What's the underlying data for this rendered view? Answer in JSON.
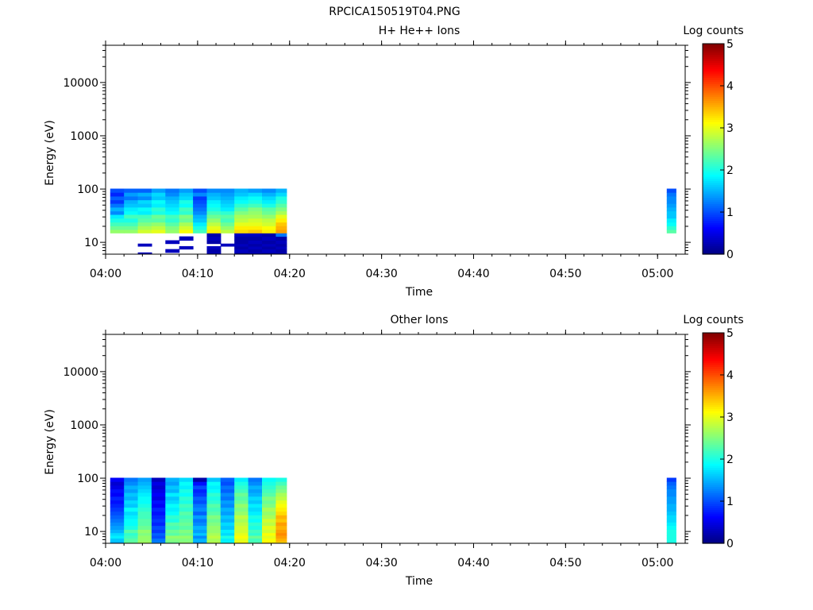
{
  "figure_title": "RPCICA150519T04.PNG",
  "chart_data": [
    {
      "type": "heatmap",
      "title": "H+ He++ Ions",
      "xlabel": "Time",
      "ylabel": "Energy (eV)",
      "yscale": "log",
      "xlim": [
        "04:00",
        "05:03"
      ],
      "ylim": [
        6,
        50000
      ],
      "xticks": [
        "04:00",
        "04:10",
        "04:20",
        "04:30",
        "04:40",
        "04:50",
        "05:00"
      ],
      "yticks": [
        "10",
        "100",
        "1000",
        "10000"
      ],
      "colorbar": {
        "label": "Log counts",
        "range": [
          0,
          5
        ],
        "ticks": [
          "0",
          "1",
          "2",
          "3",
          "4",
          "5"
        ],
        "colormap": "jet"
      },
      "energy_bins": [
        6,
        7,
        8,
        9,
        10,
        12,
        14,
        16,
        19,
        22,
        26,
        31,
        36,
        42,
        50,
        58,
        68,
        80,
        94
      ],
      "columns": [
        {
          "start": "04:00:30",
          "end": "04:02:00",
          "values": [
            0,
            0,
            0,
            0,
            0,
            0,
            0,
            2.6,
            2.4,
            2.2,
            2.0,
            1.8,
            1.3,
            1.5,
            1.2,
            0.9,
            1.1,
            0.8,
            1.0
          ]
        },
        {
          "start": "04:02:00",
          "end": "04:03:30",
          "values": [
            0,
            0,
            0,
            0,
            0,
            0,
            0,
            2.6,
            2.4,
            2.2,
            2.0,
            2.2,
            1.9,
            1.8,
            1.6,
            1.5,
            1.2,
            1.4,
            1.1
          ]
        },
        {
          "start": "04:03:30",
          "end": "04:05:00",
          "values": [
            0.3,
            0,
            0,
            0.3,
            0,
            0,
            0,
            2.9,
            2.7,
            2.5,
            2.3,
            2.2,
            1.8,
            1.9,
            1.6,
            1.7,
            1.3,
            1.5,
            1.1
          ]
        },
        {
          "start": "04:05:00",
          "end": "04:06:30",
          "values": [
            0,
            0,
            0,
            0,
            0,
            0,
            0,
            3.0,
            2.8,
            2.6,
            2.3,
            2.4,
            2.0,
            2.1,
            1.8,
            1.9,
            1.6,
            1.7,
            1.4
          ]
        },
        {
          "start": "04:06:30",
          "end": "04:08:00",
          "values": [
            0,
            0.3,
            0,
            0,
            0.3,
            0,
            0,
            2.6,
            2.5,
            2.3,
            2.1,
            2.2,
            1.9,
            1.8,
            1.7,
            1.6,
            1.5,
            1.3,
            1.2
          ]
        },
        {
          "start": "04:08:00",
          "end": "04:09:30",
          "values": [
            0,
            0,
            0.3,
            0,
            0,
            0.3,
            0,
            3.1,
            2.9,
            2.7,
            2.4,
            2.5,
            2.1,
            2.2,
            1.9,
            2.0,
            1.7,
            1.6,
            1.4
          ]
        },
        {
          "start": "04:09:30",
          "end": "04:11:00",
          "values": [
            0,
            0,
            0,
            0,
            0,
            0,
            0,
            2.2,
            2.0,
            1.8,
            1.6,
            1.5,
            1.3,
            1.2,
            1.1,
            1.0,
            0.9,
            1.3,
            1.0
          ]
        },
        {
          "start": "04:11:00",
          "end": "04:12:30",
          "values": [
            0.3,
            0.2,
            0.3,
            0,
            0.2,
            0.3,
            0.2,
            3.2,
            3.0,
            2.8,
            2.6,
            2.4,
            2.2,
            2.0,
            1.9,
            1.8,
            1.6,
            1.5,
            1.3
          ]
        },
        {
          "start": "04:12:30",
          "end": "04:14:00",
          "values": [
            0,
            0,
            0,
            0.3,
            0,
            0,
            0,
            2.8,
            2.6,
            2.4,
            2.2,
            2.3,
            2.1,
            1.8,
            1.7,
            1.6,
            1.5,
            1.4,
            1.3
          ]
        },
        {
          "start": "04:14:00",
          "end": "04:15:30",
          "values": [
            0.2,
            0.3,
            0.2,
            0.3,
            0.2,
            0.2,
            0.3,
            3.3,
            3.2,
            3.0,
            2.8,
            2.7,
            2.5,
            2.3,
            2.1,
            1.9,
            1.8,
            1.6,
            1.5
          ]
        },
        {
          "start": "04:15:30",
          "end": "04:17:00",
          "values": [
            0.3,
            0.2,
            0.3,
            0.2,
            0.3,
            0.2,
            0.3,
            3.4,
            3.2,
            3.0,
            2.9,
            2.7,
            2.6,
            2.5,
            2.2,
            2.0,
            1.9,
            1.7,
            1.4
          ]
        },
        {
          "start": "04:17:00",
          "end": "04:18:30",
          "values": [
            0.2,
            0.3,
            0.2,
            0.3,
            0.2,
            0.3,
            0.2,
            3.2,
            3.1,
            2.9,
            2.8,
            2.6,
            2.4,
            2.3,
            2.0,
            1.8,
            1.7,
            1.5,
            1.3
          ]
        },
        {
          "start": "04:18:30",
          "end": "04:19:40",
          "values": [
            0.3,
            0.2,
            0.3,
            0.2,
            0.3,
            0.2,
            1.2,
            3.6,
            3.5,
            3.4,
            3.2,
            3.0,
            2.7,
            2.5,
            2.3,
            2.1,
            2.0,
            1.7,
            1.5
          ]
        },
        {
          "start": "05:01:00",
          "end": "05:02:00",
          "values": [
            null,
            null,
            null,
            null,
            null,
            null,
            null,
            2.3,
            2.1,
            1.9,
            1.8,
            1.6,
            1.6,
            1.5,
            1.4,
            1.3,
            1.3,
            1.2,
            1.0
          ]
        }
      ]
    },
    {
      "type": "heatmap",
      "title": "Other Ions",
      "xlabel": "Time",
      "ylabel": "Energy (eV)",
      "yscale": "log",
      "xlim": [
        "04:00",
        "05:03"
      ],
      "ylim": [
        6,
        50000
      ],
      "xticks": [
        "04:00",
        "04:10",
        "04:20",
        "04:30",
        "04:40",
        "04:50",
        "05:00"
      ],
      "yticks": [
        "10",
        "100",
        "1000",
        "10000"
      ],
      "colorbar": {
        "label": "Log counts",
        "range": [
          0,
          5
        ],
        "ticks": [
          "0",
          "1",
          "2",
          "3",
          "4",
          "5"
        ],
        "colormap": "jet"
      },
      "energy_bins": [
        6,
        7,
        8,
        9,
        10,
        12,
        14,
        16,
        19,
        22,
        26,
        31,
        36,
        42,
        50,
        58,
        68,
        80,
        94
      ],
      "columns": [
        {
          "start": "04:00:30",
          "end": "04:02:00",
          "values": [
            1.5,
            1.6,
            1.8,
            1.7,
            1.5,
            1.4,
            1.3,
            1.2,
            1.1,
            1.0,
            0.9,
            0.8,
            0.7,
            0.8,
            0.6,
            0.7,
            0.5,
            0.4,
            0.6
          ]
        },
        {
          "start": "04:02:00",
          "end": "04:03:30",
          "values": [
            2.4,
            2.3,
            2.2,
            2.1,
            2.3,
            2.0,
            1.9,
            1.9,
            1.8,
            1.7,
            1.9,
            1.6,
            1.7,
            1.5,
            1.6,
            1.4,
            1.5,
            1.3,
            1.2
          ]
        },
        {
          "start": "04:03:30",
          "end": "04:05:00",
          "values": [
            2.7,
            2.6,
            2.6,
            2.5,
            2.6,
            2.4,
            2.3,
            2.3,
            2.2,
            2.2,
            2.1,
            2.0,
            1.9,
            1.9,
            1.8,
            1.7,
            1.6,
            1.5,
            1.4
          ]
        },
        {
          "start": "04:05:00",
          "end": "04:06:30",
          "values": [
            1.3,
            1.2,
            1.0,
            1.1,
            0.9,
            1.0,
            0.8,
            0.9,
            0.8,
            0.7,
            0.8,
            0.6,
            0.7,
            0.5,
            0.6,
            0.5,
            0.4,
            0.5,
            0.3
          ]
        },
        {
          "start": "04:06:30",
          "end": "04:08:00",
          "values": [
            2.4,
            2.5,
            2.6,
            2.3,
            2.4,
            2.2,
            2.3,
            2.0,
            2.1,
            1.9,
            1.8,
            1.9,
            1.7,
            1.6,
            1.8,
            1.5,
            1.6,
            1.4,
            1.5
          ]
        },
        {
          "start": "04:08:00",
          "end": "04:09:30",
          "values": [
            2.6,
            2.5,
            2.6,
            2.4,
            2.5,
            2.3,
            2.4,
            2.3,
            2.2,
            2.3,
            2.1,
            2.2,
            2.0,
            2.1,
            1.9,
            2.0,
            1.8,
            1.9,
            1.7
          ]
        },
        {
          "start": "04:09:30",
          "end": "04:11:00",
          "values": [
            1.4,
            1.5,
            1.3,
            1.6,
            1.4,
            1.5,
            1.3,
            1.2,
            1.4,
            1.1,
            1.3,
            1.2,
            1.0,
            1.1,
            0.9,
            0.8,
            1.0,
            0.7,
            0.2
          ]
        },
        {
          "start": "04:11:00",
          "end": "04:12:30",
          "values": [
            2.8,
            2.7,
            2.8,
            2.7,
            2.6,
            2.6,
            2.5,
            2.4,
            2.5,
            2.3,
            2.2,
            2.3,
            2.1,
            2.0,
            2.1,
            1.9,
            1.8,
            1.9,
            1.6
          ]
        },
        {
          "start": "04:12:30",
          "end": "04:14:00",
          "values": [
            1.9,
            1.8,
            2.0,
            1.7,
            1.8,
            1.6,
            1.7,
            1.5,
            1.6,
            1.4,
            1.5,
            1.3,
            1.4,
            1.2,
            1.3,
            1.1,
            1.2,
            1.0,
            1.1
          ]
        },
        {
          "start": "04:14:00",
          "end": "04:15:30",
          "values": [
            3.1,
            3.0,
            3.1,
            3.0,
            2.9,
            2.9,
            2.8,
            2.7,
            2.8,
            2.6,
            2.5,
            2.6,
            2.4,
            2.3,
            2.4,
            2.2,
            2.1,
            2.0,
            1.8
          ]
        },
        {
          "start": "04:15:30",
          "end": "04:17:00",
          "values": [
            2.3,
            2.2,
            2.4,
            2.1,
            2.2,
            2.0,
            2.1,
            1.9,
            2.0,
            1.8,
            1.7,
            1.8,
            1.6,
            1.7,
            1.5,
            1.4,
            1.5,
            1.3,
            1.2
          ]
        },
        {
          "start": "04:17:00",
          "end": "04:18:30",
          "values": [
            3.2,
            3.1,
            3.0,
            3.1,
            2.9,
            3.0,
            2.8,
            2.9,
            2.7,
            2.6,
            2.7,
            2.5,
            2.4,
            2.5,
            2.3,
            2.2,
            2.1,
            2.0,
            1.9
          ]
        },
        {
          "start": "04:18:30",
          "end": "04:19:40",
          "values": [
            3.3,
            3.5,
            3.6,
            3.7,
            3.6,
            3.5,
            3.6,
            3.4,
            3.5,
            3.3,
            3.2,
            3.1,
            3.0,
            2.8,
            2.7,
            2.5,
            2.4,
            2.2,
            2.0
          ]
        },
        {
          "start": "05:01:00",
          "end": "05:02:00",
          "values": [
            2.0,
            2.0,
            2.0,
            2.0,
            2.0,
            1.9,
            1.8,
            1.7,
            1.7,
            1.6,
            1.5,
            1.5,
            1.4,
            1.4,
            1.3,
            1.3,
            1.2,
            1.1,
            0.9
          ]
        }
      ]
    }
  ]
}
